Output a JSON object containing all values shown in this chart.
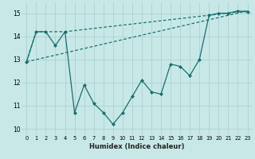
{
  "xlabel": "Humidex (Indice chaleur)",
  "bg_color": "#c8e8e8",
  "line_color": "#1a6e6e",
  "grid_color": "#a8cccc",
  "xlim": [
    -0.5,
    23.5
  ],
  "ylim": [
    9.75,
    15.45
  ],
  "xticks": [
    0,
    1,
    2,
    3,
    4,
    5,
    6,
    7,
    8,
    9,
    10,
    11,
    12,
    13,
    14,
    15,
    16,
    17,
    18,
    19,
    20,
    21,
    22,
    23
  ],
  "yticks": [
    10,
    11,
    12,
    13,
    14,
    15
  ],
  "series": [
    {
      "x": [
        0,
        1,
        2,
        3,
        4,
        5,
        6,
        7,
        8,
        9,
        10,
        11,
        12,
        13,
        14,
        15,
        16,
        17,
        18,
        19,
        20,
        21,
        22,
        23
      ],
      "y": [
        12.9,
        14.2,
        14.2,
        13.6,
        14.2,
        10.7,
        11.9,
        11.1,
        10.7,
        10.2,
        10.7,
        11.4,
        12.1,
        11.6,
        11.5,
        12.8,
        12.7,
        12.3,
        13.0,
        14.9,
        15.0,
        15.0,
        15.1,
        15.05
      ],
      "marker": "D",
      "linestyle": "-",
      "linewidth": 0.9,
      "markersize": 2.0
    },
    {
      "x": [
        0,
        1,
        4,
        23
      ],
      "y": [
        12.9,
        14.2,
        14.2,
        15.1
      ],
      "marker": null,
      "linestyle": "--",
      "linewidth": 0.9,
      "markersize": 0
    },
    {
      "x": [
        0,
        23
      ],
      "y": [
        12.9,
        15.1
      ],
      "marker": null,
      "linestyle": "--",
      "linewidth": 0.9,
      "markersize": 0
    }
  ]
}
